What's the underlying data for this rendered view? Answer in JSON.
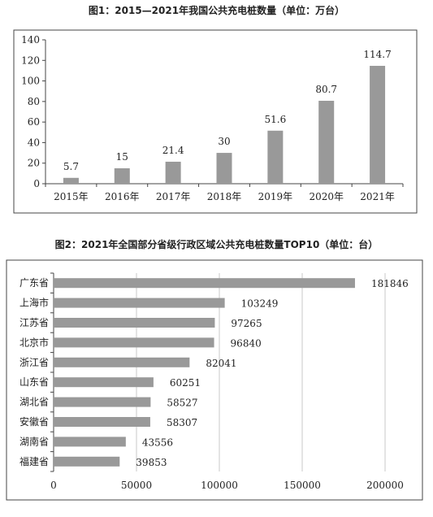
{
  "chart_data": [
    {
      "type": "bar",
      "title": "图1：2015—2021年我国公共充电桩数量（单位：万台）",
      "categories": [
        "2015年",
        "2016年",
        "2017年",
        "2018年",
        "2019年",
        "2020年",
        "2021年"
      ],
      "values": [
        5.7,
        15,
        21.4,
        30,
        51.6,
        80.7,
        114.7
      ],
      "value_labels": [
        "5.7",
        "15",
        "21.4",
        "30",
        "51.6",
        "80.7",
        "114.7"
      ],
      "yticks": [
        "0",
        "20",
        "40",
        "60",
        "80",
        "100",
        "120",
        "140"
      ],
      "ylim": [
        0,
        140
      ],
      "bar_color": "#999999",
      "grid": false
    },
    {
      "type": "bar",
      "orientation": "horizontal",
      "title": "图2：2021年全国部分省级行政区域公共充电桩数量TOP10（单位：台）",
      "categories": [
        "广东省",
        "上海市",
        "江苏省",
        "北京市",
        "浙江省",
        "山东省",
        "湖北省",
        "安徽省",
        "湖南省",
        "福建省"
      ],
      "values": [
        181846,
        103249,
        97265,
        96840,
        82041,
        60251,
        58527,
        58307,
        43556,
        39853
      ],
      "value_labels": [
        "181846",
        "103249",
        "97265",
        "96840",
        "82041",
        "60251",
        "58527",
        "58307",
        "43556",
        "39853"
      ],
      "xticks": [
        "0",
        "50000",
        "100000",
        "150000",
        "200000"
      ],
      "xlim": [
        0,
        200000
      ],
      "bar_color": "#999999",
      "grid": true
    }
  ]
}
